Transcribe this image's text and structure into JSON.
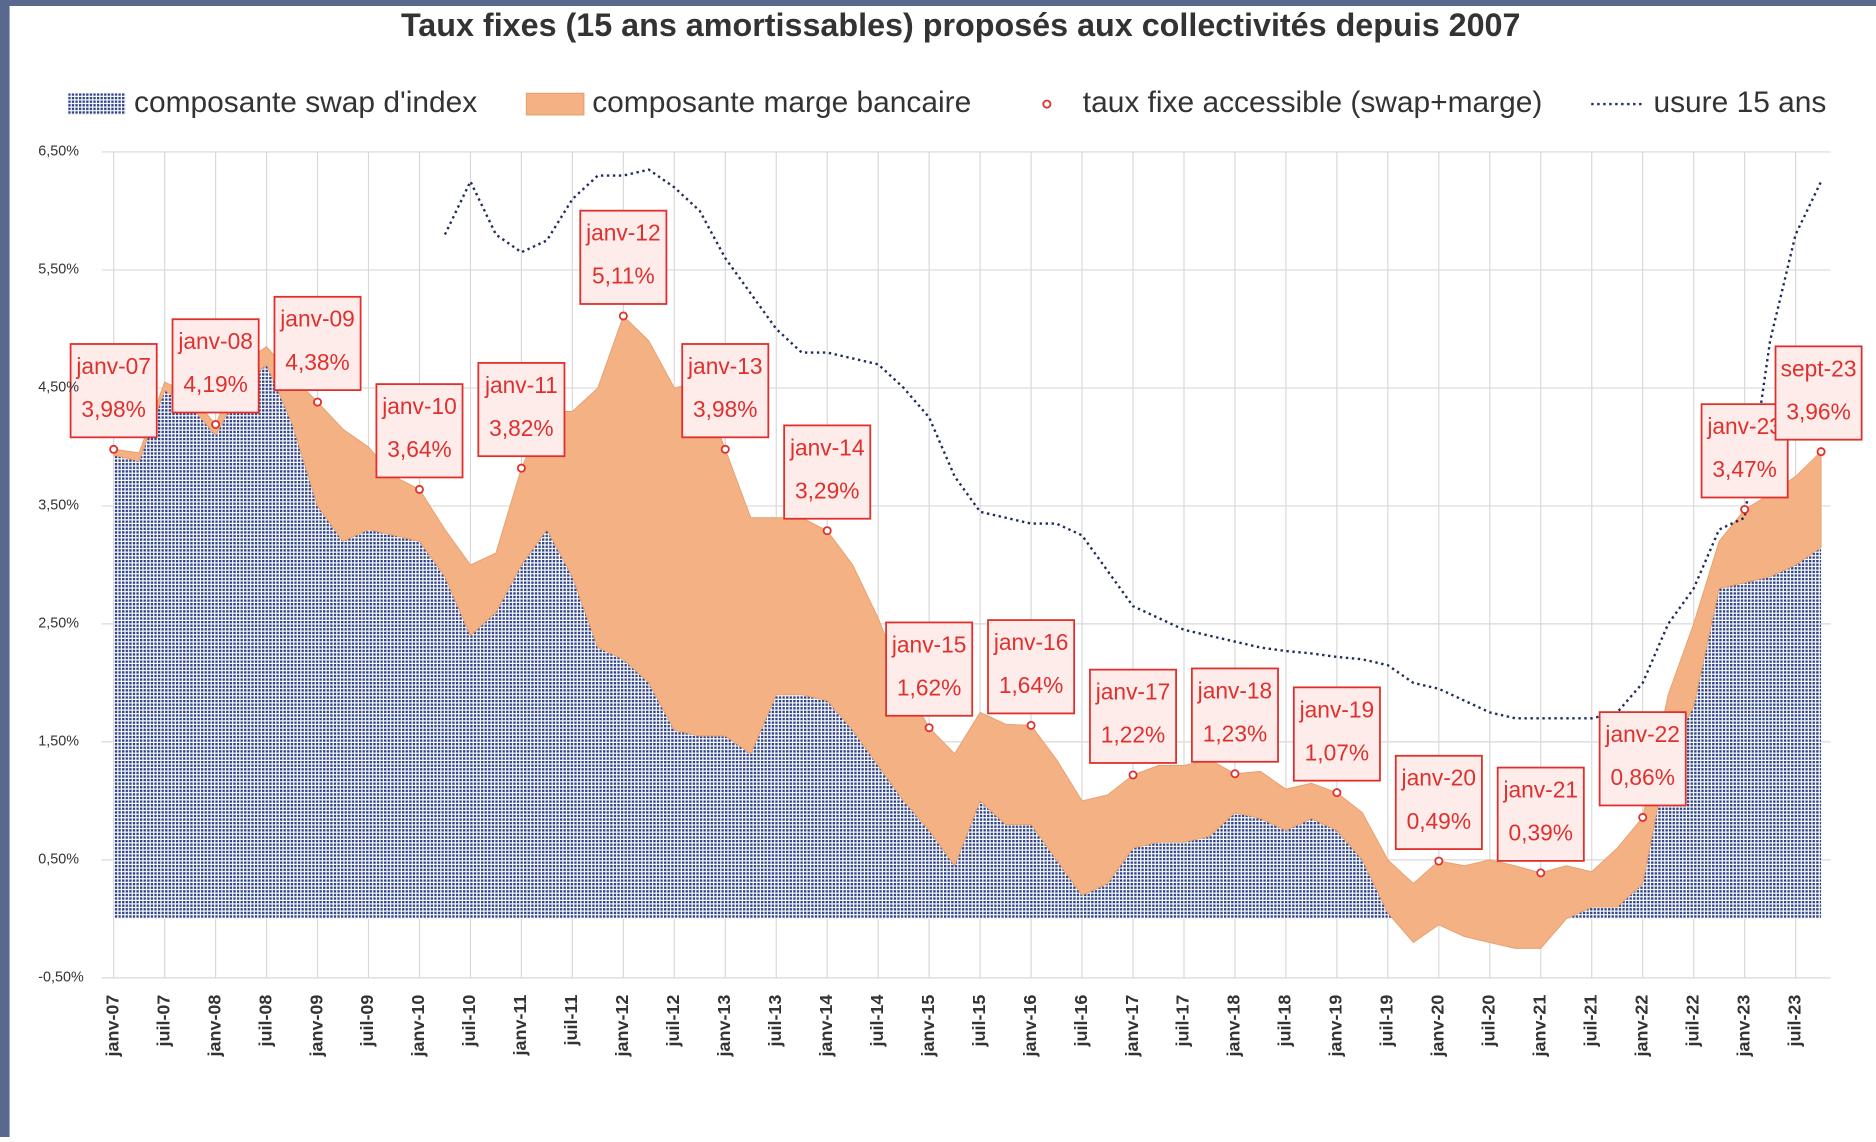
{
  "chart_data": {
    "type": "area",
    "title": "Taux fixes (15 ans amortissables) proposés aux collectivités depuis 2007",
    "categories": [
      "janv-07",
      null,
      "juil-07",
      null,
      "janv-08",
      null,
      "juil-08",
      null,
      "janv-09",
      null,
      "juil-09",
      null,
      "janv-10",
      null,
      "juil-10",
      null,
      "janv-11",
      null,
      "juil-11",
      null,
      "janv-12",
      null,
      "juil-12",
      null,
      "janv-13",
      null,
      "juil-13",
      null,
      "janv-14",
      null,
      "juil-14",
      null,
      "janv-15",
      null,
      "juil-15",
      null,
      "janv-16",
      null,
      "juil-16",
      null,
      "janv-17",
      null,
      "juil-17",
      null,
      "janv-18",
      null,
      "juil-18",
      null,
      "janv-19",
      null,
      "juil-19",
      null,
      "janv-20",
      null,
      "juil-20",
      null,
      "janv-21",
      null,
      "juil-21",
      null,
      "janv-22",
      null,
      "juil-22",
      null,
      "janv-23",
      null,
      "juil-23",
      null
    ],
    "series": [
      {
        "name": "composante swap d'index",
        "color": "#2f4486",
        "stack": true,
        "values": [
          3.93,
          3.88,
          4.48,
          4.35,
          4.1,
          4.5,
          4.7,
          4.2,
          3.5,
          3.2,
          3.3,
          3.25,
          3.2,
          2.9,
          2.4,
          2.6,
          3.0,
          3.3,
          2.9,
          2.3,
          2.2,
          2.0,
          1.6,
          1.55,
          1.55,
          1.4,
          1.9,
          1.9,
          1.85,
          1.6,
          1.3,
          1.0,
          0.75,
          0.45,
          1.0,
          0.8,
          0.8,
          0.5,
          0.2,
          0.3,
          0.6,
          0.65,
          0.65,
          0.7,
          0.9,
          0.85,
          0.75,
          0.85,
          0.75,
          0.5,
          0.05,
          -0.2,
          -0.05,
          -0.15,
          -0.2,
          -0.25,
          -0.25,
          0.0,
          0.1,
          0.1,
          0.3,
          1.4,
          1.8,
          2.8,
          2.85,
          2.9,
          3.0,
          3.15
        ]
      },
      {
        "name": "composante marge bancaire",
        "color": "#f4b183",
        "stack": true,
        "values": [
          0.05,
          0.07,
          0.07,
          0.1,
          0.09,
          0.2,
          0.15,
          0.4,
          0.88,
          0.95,
          0.7,
          0.5,
          0.44,
          0.4,
          0.6,
          0.5,
          0.82,
          1.0,
          1.4,
          2.2,
          2.91,
          2.9,
          2.9,
          3.0,
          2.43,
          2.0,
          1.5,
          1.5,
          1.44,
          1.4,
          1.25,
          1.0,
          0.87,
          0.95,
          0.75,
          0.85,
          0.84,
          0.85,
          0.8,
          0.75,
          0.62,
          0.65,
          0.65,
          0.65,
          0.33,
          0.4,
          0.35,
          0.3,
          0.32,
          0.4,
          0.45,
          0.5,
          0.54,
          0.6,
          0.7,
          0.7,
          0.64,
          0.45,
          0.3,
          0.5,
          0.56,
          0.5,
          0.7,
          0.4,
          0.62,
          0.7,
          0.75,
          0.81
        ]
      },
      {
        "name": "taux fixe accessible (swap+marge)",
        "color": "#e0302d",
        "values": [
          3.98,
          null,
          null,
          null,
          4.19,
          null,
          null,
          null,
          4.38,
          null,
          null,
          null,
          3.64,
          null,
          null,
          null,
          3.82,
          null,
          null,
          null,
          5.11,
          null,
          null,
          null,
          3.98,
          null,
          null,
          null,
          3.29,
          null,
          null,
          null,
          1.62,
          null,
          null,
          null,
          1.64,
          null,
          null,
          null,
          1.22,
          null,
          null,
          null,
          1.23,
          null,
          null,
          null,
          1.07,
          null,
          null,
          null,
          0.49,
          null,
          null,
          null,
          0.39,
          null,
          null,
          null,
          0.86,
          null,
          null,
          null,
          3.47,
          null,
          null,
          3.96
        ],
        "value_labels": [
          "3,98%",
          null,
          null,
          null,
          "4,19%",
          null,
          null,
          null,
          "4,38%",
          null,
          null,
          null,
          "3,64%",
          null,
          null,
          null,
          "3,82%",
          null,
          null,
          null,
          "5,11%",
          null,
          null,
          null,
          "3,98%",
          null,
          null,
          null,
          "3,29%",
          null,
          null,
          null,
          "1,62%",
          null,
          null,
          null,
          "1,64%",
          null,
          null,
          null,
          "1,22%",
          null,
          null,
          null,
          "1,23%",
          null,
          null,
          null,
          "1,07%",
          null,
          null,
          null,
          "0,49%",
          null,
          null,
          null,
          "0,39%",
          null,
          null,
          null,
          "0,86%",
          null,
          null,
          null,
          "3,47%",
          null,
          null,
          "3,96%"
        ],
        "point_labels": [
          "janv-07",
          null,
          null,
          null,
          "janv-08",
          null,
          null,
          null,
          "janv-09",
          null,
          null,
          null,
          "janv-10",
          null,
          null,
          null,
          "janv-11",
          null,
          null,
          null,
          "janv-12",
          null,
          null,
          null,
          "janv-13",
          null,
          null,
          null,
          "janv-14",
          null,
          null,
          null,
          "janv-15",
          null,
          null,
          null,
          "janv-16",
          null,
          null,
          null,
          "janv-17",
          null,
          null,
          null,
          "janv-18",
          null,
          null,
          null,
          "janv-19",
          null,
          null,
          null,
          "janv-20",
          null,
          null,
          null,
          "janv-21",
          null,
          null,
          null,
          "janv-22",
          null,
          null,
          null,
          "janv-23",
          null,
          null,
          "sept-23"
        ]
      },
      {
        "name": "usure 15 ans",
        "color": "#1f2d5a",
        "dotted": true,
        "values": [
          null,
          null,
          null,
          null,
          null,
          null,
          null,
          null,
          null,
          null,
          null,
          null,
          null,
          5.8,
          6.25,
          5.8,
          5.65,
          5.75,
          6.1,
          6.3,
          6.3,
          6.35,
          6.2,
          6.0,
          5.6,
          5.3,
          5.0,
          4.8,
          4.8,
          4.75,
          4.7,
          4.5,
          4.25,
          3.75,
          3.45,
          3.4,
          3.35,
          3.35,
          3.25,
          2.95,
          2.65,
          2.55,
          2.45,
          2.4,
          2.35,
          2.3,
          2.27,
          2.25,
          2.22,
          2.2,
          2.15,
          2.0,
          1.95,
          1.85,
          1.75,
          1.7,
          1.7,
          1.7,
          1.7,
          1.75,
          2.0,
          2.5,
          2.8,
          3.3,
          3.4,
          4.9,
          5.8,
          6.25
        ]
      }
    ],
    "ylim": [
      -0.5,
      6.5
    ],
    "yticks": [
      {
        "value": -0.5,
        "label": "-0,50%"
      },
      {
        "value": 0.5,
        "label": "0,50%"
      },
      {
        "value": 1.5,
        "label": "1,50%"
      },
      {
        "value": 2.5,
        "label": "2,50%"
      },
      {
        "value": 3.5,
        "label": "3,50%"
      },
      {
        "value": 4.5,
        "label": "4,50%"
      },
      {
        "value": 5.5,
        "label": "5,50%"
      },
      {
        "value": 6.5,
        "label": "6,50%"
      }
    ],
    "grid": true,
    "legend": "top"
  }
}
